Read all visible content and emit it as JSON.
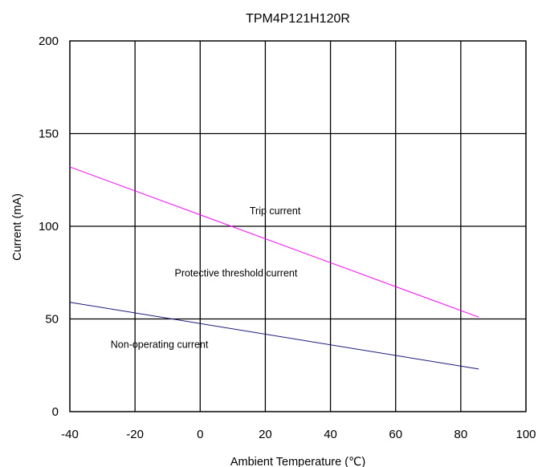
{
  "chart_data": {
    "type": "line",
    "title": "TPM4P121H120R",
    "xlabel": "Ambient Temperature (℃)",
    "ylabel": "Current (mA)",
    "xlim": [
      -40,
      100
    ],
    "ylim": [
      0,
      200
    ],
    "xticks": [
      -40,
      -20,
      0,
      20,
      40,
      60,
      80,
      100
    ],
    "yticks": [
      0,
      50,
      100,
      150,
      200
    ],
    "grid": true,
    "series": [
      {
        "color": "#ff00ff",
        "x": [
          -40,
          85.5
        ],
        "y": [
          132,
          51
        ]
      },
      {
        "color": "#1a1a7a",
        "x": [
          -40,
          85.5
        ],
        "y": [
          59,
          23
        ]
      }
    ],
    "annotations": [
      {
        "text": "Trip current",
        "x": 23,
        "y": 106.5
      },
      {
        "text": "Protective threshold current",
        "x": 11,
        "y": 73
      },
      {
        "text": "Non-operating current",
        "x": -12.5,
        "y": 34.5
      }
    ]
  }
}
